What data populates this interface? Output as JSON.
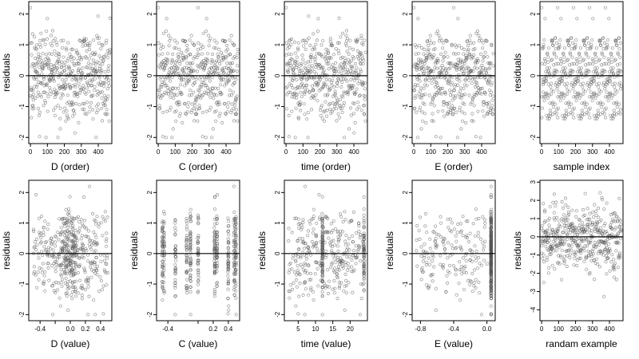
{
  "figure": {
    "type": "scatter",
    "panels": [
      {
        "xlabel": "D (order)",
        "ylabel": "residuals",
        "xlim": [
          -10,
          480
        ],
        "ylim": [
          -2.2,
          2.4
        ],
        "xticks": [
          0,
          100,
          200,
          300,
          400
        ],
        "yticks": [
          -2,
          -1,
          0,
          1,
          2
        ],
        "x_mode": "order",
        "n": 470
      },
      {
        "xlabel": "C (order)",
        "ylabel": "residuals",
        "xlim": [
          -10,
          480
        ],
        "ylim": [
          -2.2,
          2.4
        ],
        "xticks": [
          0,
          100,
          200,
          300,
          400
        ],
        "yticks": [
          -2,
          -1,
          0,
          1,
          2
        ],
        "x_mode": "order",
        "n": 470
      },
      {
        "xlabel": "time (order)",
        "ylabel": "residuals",
        "xlim": [
          -10,
          480
        ],
        "ylim": [
          -2.2,
          2.4
        ],
        "xticks": [
          0,
          100,
          200,
          300,
          400
        ],
        "yticks": [
          -2,
          -1,
          0,
          1,
          2
        ],
        "x_mode": "order",
        "n": 470
      },
      {
        "xlabel": "E (order)",
        "ylabel": "residuals",
        "xlim": [
          -10,
          480
        ],
        "ylim": [
          -2.2,
          2.4
        ],
        "xticks": [
          0,
          100,
          200,
          300,
          400
        ],
        "yticks": [
          -2,
          -1,
          0,
          1,
          2
        ],
        "x_mode": "order",
        "n": 470
      },
      {
        "xlabel": "sample index",
        "ylabel": "residuals",
        "xlim": [
          -10,
          480
        ],
        "ylim": [
          -2.2,
          2.4
        ],
        "xticks": [
          0,
          100,
          200,
          300,
          400
        ],
        "yticks": [
          -2,
          -1,
          0,
          1,
          2
        ],
        "x_mode": "order",
        "n": 470
      },
      {
        "xlabel": "D (value)",
        "ylabel": "residuals",
        "xlim": [
          -0.55,
          0.55
        ],
        "ylim": [
          -2.2,
          2.4
        ],
        "xticks": [
          -0.4,
          -0.2,
          0.0,
          0.2,
          0.4
        ],
        "xticklabels": [
          "-0.4",
          "",
          "0.0",
          "0.2",
          "0.4"
        ],
        "yticks": [
          -2,
          -1,
          0,
          1,
          2
        ],
        "x_mode": "value_D",
        "n": 470
      },
      {
        "xlabel": "C (value)",
        "ylabel": "residuals",
        "xlim": [
          -0.55,
          0.55
        ],
        "ylim": [
          -2.2,
          2.4
        ],
        "xticks": [
          -0.4,
          0.0,
          0.2,
          0.4
        ],
        "xticklabels": [
          "-0.4",
          "",
          "0.2",
          "0.4"
        ],
        "yticks": [
          -2,
          -1,
          0,
          1,
          2
        ],
        "x_mode": "value_C",
        "n": 470
      },
      {
        "xlabel": "time (value)",
        "ylabel": "residuals",
        "xlim": [
          1,
          25
        ],
        "ylim": [
          -2.2,
          2.4
        ],
        "xticks": [
          5,
          10,
          15,
          20
        ],
        "yticks": [
          -2,
          -1,
          0,
          1,
          2
        ],
        "x_mode": "value_time",
        "n": 470
      },
      {
        "xlabel": "E (value)",
        "ylabel": "residuals",
        "xlim": [
          -0.9,
          0.1
        ],
        "ylim": [
          -2.2,
          2.4
        ],
        "xticks": [
          -0.8,
          -0.4,
          0.0
        ],
        "xticklabels": [
          "-0.8",
          "-0.4",
          "0.0"
        ],
        "yticks": [
          -2,
          -1,
          0,
          1,
          2
        ],
        "x_mode": "value_E",
        "n": 470
      },
      {
        "xlabel": "randam example",
        "ylabel": "residuals",
        "xlim": [
          -10,
          480
        ],
        "ylim": [
          -4.6,
          3.1
        ],
        "xticks": [
          0,
          100,
          200,
          300,
          400
        ],
        "yticks": [
          -4,
          -3,
          -2,
          -1,
          0,
          1,
          2,
          3
        ],
        "x_mode": "order",
        "n": 470
      }
    ]
  },
  "chart_data": [
    {
      "type": "scatter",
      "xlabel": "D (order)",
      "ylabel": "residuals",
      "xlim": [
        -10,
        480
      ],
      "ylim": [
        -2.2,
        2.4
      ],
      "reference_line_y": 0,
      "points": "approx. 470 residuals, uniformly spread over index 0–470, y roughly N(0, 0.8), range about -2 to 2.2"
    },
    {
      "type": "scatter",
      "xlabel": "C (order)",
      "ylabel": "residuals",
      "xlim": [
        -10,
        480
      ],
      "ylim": [
        -2.2,
        2.4
      ],
      "reference_line_y": 0,
      "points": "approx. 470 residuals over index 0–470, range about -2 to 2.2"
    },
    {
      "type": "scatter",
      "xlabel": "time (order)",
      "ylabel": "residuals",
      "xlim": [
        -10,
        480
      ],
      "ylim": [
        -2.2,
        2.4
      ],
      "reference_line_y": 0,
      "points": "approx. 470 residuals over index 0–470, range about -2 to 2.2"
    },
    {
      "type": "scatter",
      "xlabel": "E (order)",
      "ylabel": "residuals",
      "xlim": [
        -10,
        480
      ],
      "ylim": [
        -2.2,
        2.4
      ],
      "reference_line_y": 0,
      "points": "approx. 470 residuals over index 0–470, range about -2 to 2.2"
    },
    {
      "type": "scatter",
      "xlabel": "sample index",
      "ylabel": "residuals",
      "xlim": [
        -10,
        480
      ],
      "ylim": [
        -2.2,
        2.4
      ],
      "reference_line_y": 0,
      "points": "approx. 470 residuals over index 0–470, range about -2 to 2.2"
    },
    {
      "type": "scatter",
      "xlabel": "D (value)",
      "ylabel": "residuals",
      "xlim": [
        -0.55,
        0.55
      ],
      "ylim": [
        -2.2,
        2.4
      ],
      "reference_line_y": 0,
      "points": "residuals vs D, x spread -0.5 to 0.5 with dense columns near 0.0–0.1"
    },
    {
      "type": "scatter",
      "xlabel": "C (value)",
      "ylabel": "residuals",
      "xlim": [
        -0.55,
        0.55
      ],
      "ylim": [
        -2.2,
        2.4
      ],
      "reference_line_y": 0,
      "points": "residuals vs C, vertical columns at discrete C values near -0.45, -0.3, -0.1, 0.25, 0.4, 0.5"
    },
    {
      "type": "scatter",
      "xlabel": "time (value)",
      "ylabel": "residuals",
      "xlim": [
        1,
        25
      ],
      "ylim": [
        -2.2,
        2.4
      ],
      "reference_line_y": 0,
      "points": "residuals vs time 1–24, with dense columns near 12 and 24"
    },
    {
      "type": "scatter",
      "xlabel": "E (value)",
      "ylabel": "residuals",
      "xlim": [
        -0.9,
        0.1
      ],
      "ylim": [
        -2.2,
        2.4
      ],
      "reference_line_y": 0,
      "points": "residuals vs E, sparse over -0.85 to 0, heavy column at E≈0.05"
    },
    {
      "type": "scatter",
      "xlabel": "randam example",
      "ylabel": "residuals",
      "xlim": [
        -10,
        480
      ],
      "ylim": [
        -4.6,
        3.1
      ],
      "reference_line_y": 0,
      "points": "approx. 470 random residuals, range about -4.2 to 2.8"
    }
  ]
}
